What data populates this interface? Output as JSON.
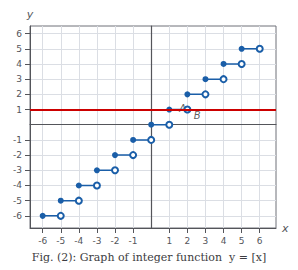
{
  "chart_data": {
    "type": "step",
    "title": "Fig. (2): Graph of integer function  y = [x]",
    "xlabel": "x",
    "ylabel": "y",
    "xlim": [
      -6.7,
      6.9
    ],
    "ylim": [
      -6.8,
      6.5
    ],
    "xticks": [
      -6,
      -5,
      -4,
      -3,
      -2,
      -1,
      1,
      2,
      3,
      4,
      5,
      6
    ],
    "yticks": [
      -6,
      -5,
      -4,
      -3,
      -2,
      -1,
      1,
      2,
      3,
      4,
      5,
      6
    ],
    "grid": true,
    "color": "#1a5ea8",
    "marker": "circle",
    "segments": [
      {
        "x_start": -6,
        "x_end": -5,
        "y": -6
      },
      {
        "x_start": -5,
        "x_end": -4,
        "y": -5
      },
      {
        "x_start": -4,
        "x_end": -3,
        "y": -4
      },
      {
        "x_start": -3,
        "x_end": -2,
        "y": -3
      },
      {
        "x_start": -2,
        "x_end": -1,
        "y": -2
      },
      {
        "x_start": -1,
        "x_end": 0,
        "y": -1
      },
      {
        "x_start": 0,
        "x_end": 1,
        "y": 0
      },
      {
        "x_start": 1,
        "x_end": 2,
        "y": 1
      },
      {
        "x_start": 2,
        "x_end": 3,
        "y": 2
      },
      {
        "x_start": 3,
        "x_end": 4,
        "y": 3
      },
      {
        "x_start": 4,
        "x_end": 5,
        "y": 4
      },
      {
        "x_start": 5,
        "x_end": 6,
        "y": 5
      }
    ],
    "lines": [
      {
        "y": 1,
        "color": "#cc0000"
      }
    ],
    "annotations": [
      {
        "x": 1.55,
        "y": 1.08,
        "text": "A"
      },
      {
        "x": 2.35,
        "y": 0.62,
        "text": "B"
      }
    ]
  }
}
